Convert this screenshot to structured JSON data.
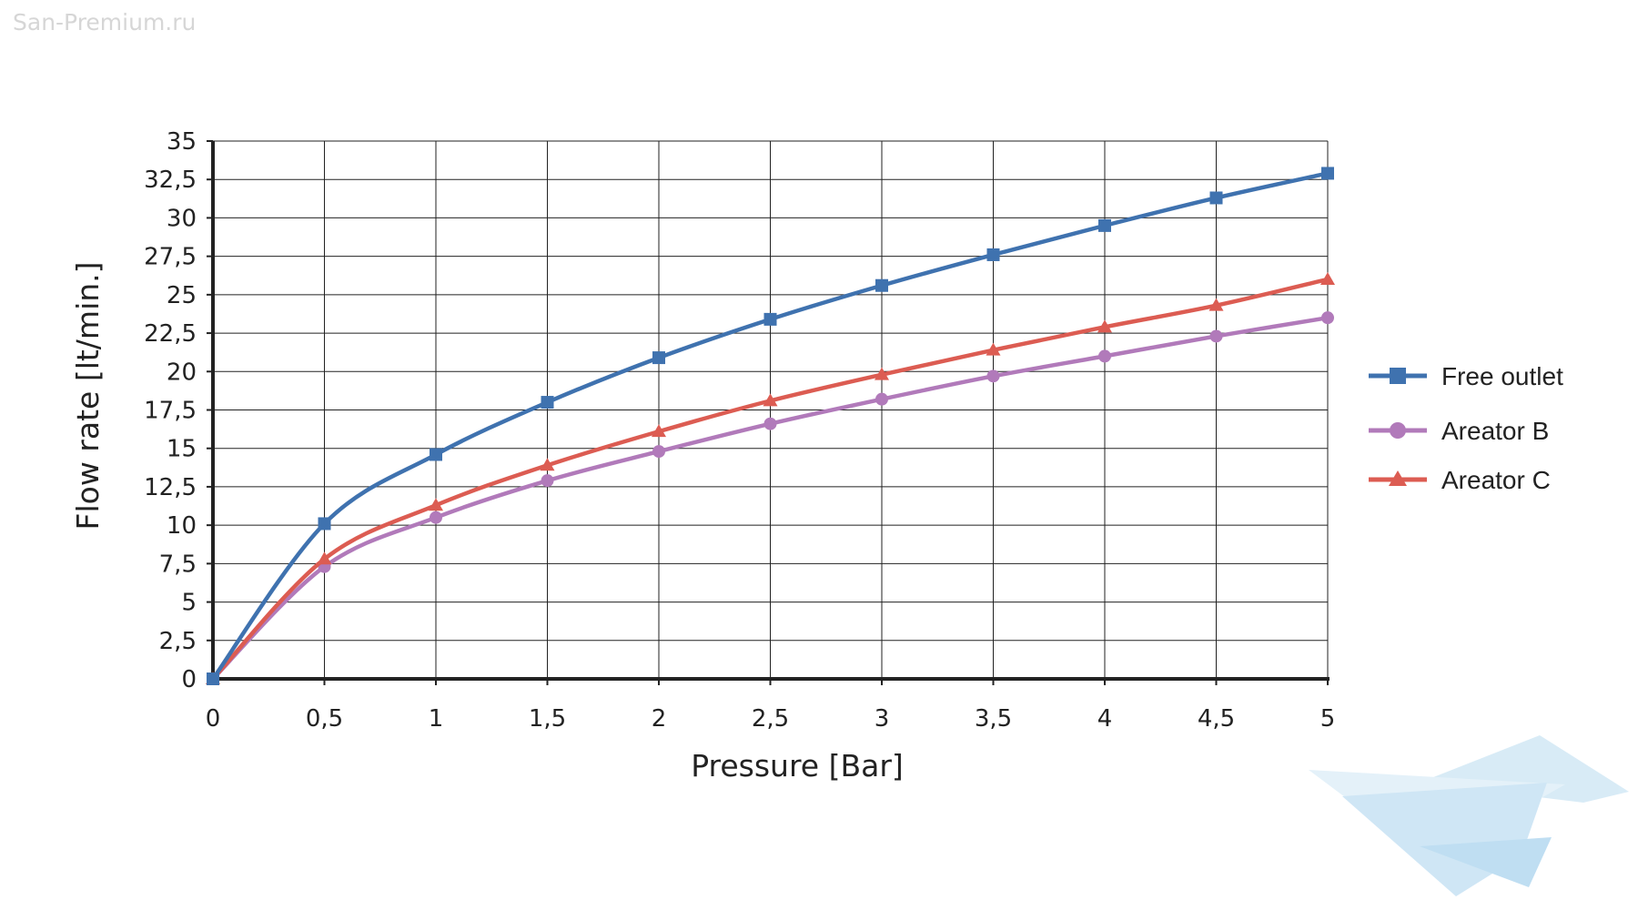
{
  "watermark": "San-Premium.ru",
  "chart_data": {
    "type": "line",
    "title": "",
    "xlabel": "Pressure [Bar]",
    "ylabel": "Flow rate [lt/min.]",
    "x": [
      0,
      0.5,
      1,
      1.5,
      2,
      2.5,
      3,
      3.5,
      4,
      4.5,
      5
    ],
    "x_tick_labels": [
      "0",
      "0,5",
      "1",
      "1,5",
      "2",
      "2,5",
      "3",
      "3,5",
      "4",
      "4,5",
      "5"
    ],
    "y_ticks": [
      0,
      2.5,
      5,
      7.5,
      10,
      12.5,
      15,
      17.5,
      20,
      22.5,
      25,
      27.5,
      30,
      32.5,
      35
    ],
    "y_tick_labels": [
      "0",
      "2,5",
      "5",
      "7,5",
      "10",
      "12,5",
      "15",
      "17,5",
      "20",
      "22,5",
      "25",
      "27,5",
      "30",
      "32,5",
      "35"
    ],
    "xlim": [
      0,
      5
    ],
    "ylim": [
      0,
      35
    ],
    "grid": true,
    "legend_position": "right",
    "series": [
      {
        "name": "Free outlet",
        "color": "#3f72af",
        "marker": "square",
        "values": [
          0,
          10.1,
          14.6,
          18.0,
          20.9,
          23.4,
          25.6,
          27.6,
          29.5,
          31.3,
          32.9
        ]
      },
      {
        "name": "Areator B",
        "color": "#b17aba",
        "marker": "circle",
        "values": [
          0,
          7.3,
          10.5,
          12.9,
          14.8,
          16.6,
          18.2,
          19.7,
          21.0,
          22.3,
          23.5
        ]
      },
      {
        "name": "Areator C",
        "color": "#dc5c52",
        "marker": "triangle",
        "values": [
          0,
          7.8,
          11.3,
          13.9,
          16.1,
          18.1,
          19.8,
          21.4,
          22.9,
          24.3,
          26.0
        ]
      }
    ]
  }
}
